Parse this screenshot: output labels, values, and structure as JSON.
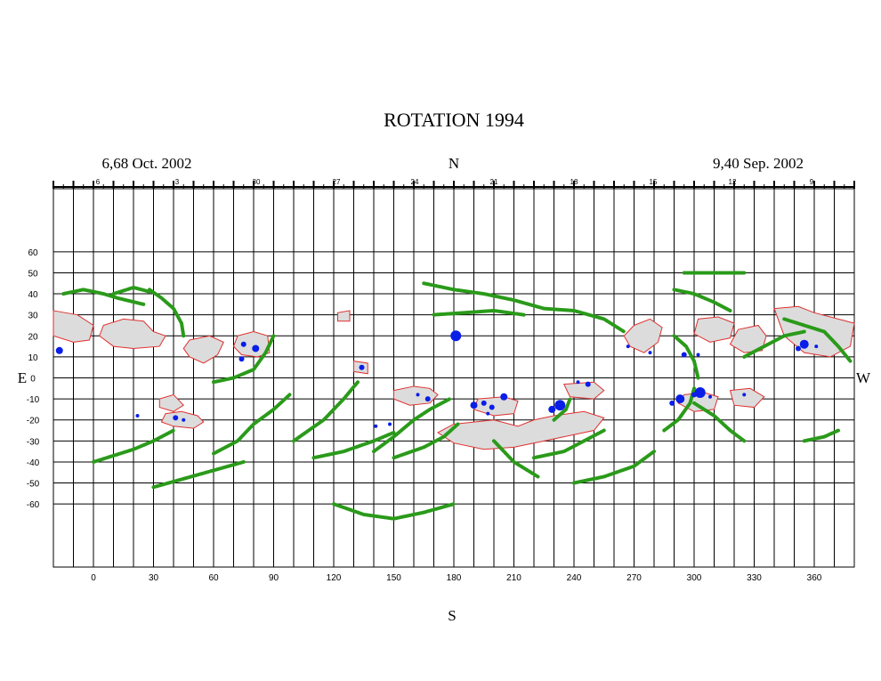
{
  "title": "ROTATION 1994",
  "date_left": "6,68 Oct. 2002",
  "date_right": "9,40 Sep. 2002",
  "north": "N",
  "south": "S",
  "east": "E",
  "west": "W",
  "top_day_labels": [
    "6",
    "3",
    "30",
    "27",
    "24",
    "21",
    "18",
    "15",
    "12",
    "9"
  ],
  "chart_data": {
    "type": "synoptic-map",
    "x_ticks": [
      0,
      30,
      60,
      90,
      120,
      150,
      180,
      210,
      240,
      270,
      300,
      330,
      360
    ],
    "y_ticks": [
      60,
      50,
      40,
      30,
      20,
      10,
      0,
      -10,
      -20,
      -30,
      -40,
      -50,
      -60
    ],
    "xlim": [
      -20,
      380
    ],
    "ylim": [
      -90,
      90
    ],
    "grid": true,
    "colors": {
      "filament": "#2a9a1a",
      "region_fill": "#dcdcdc",
      "region_edge": "#e03030",
      "sunspot": "#0a1ee8",
      "grid": "#000000"
    },
    "regions": [
      [
        [
          -20,
          32
        ],
        [
          -8,
          30
        ],
        [
          0,
          25
        ],
        [
          -2,
          18
        ],
        [
          -10,
          17
        ],
        [
          -20,
          20
        ]
      ],
      [
        [
          5,
          25
        ],
        [
          15,
          28
        ],
        [
          25,
          27
        ],
        [
          30,
          22
        ],
        [
          36,
          20
        ],
        [
          33,
          15
        ],
        [
          20,
          14
        ],
        [
          10,
          15
        ],
        [
          3,
          20
        ]
      ],
      [
        [
          48,
          18
        ],
        [
          58,
          20
        ],
        [
          65,
          17
        ],
        [
          62,
          11
        ],
        [
          55,
          7
        ],
        [
          48,
          10
        ],
        [
          45,
          14
        ]
      ],
      [
        [
          72,
          20
        ],
        [
          80,
          22
        ],
        [
          87,
          20
        ],
        [
          88,
          12
        ],
        [
          82,
          10
        ],
        [
          74,
          11
        ],
        [
          70,
          15
        ]
      ],
      [
        [
          33,
          -10
        ],
        [
          40,
          -8
        ],
        [
          45,
          -13
        ],
        [
          40,
          -16
        ],
        [
          33,
          -14
        ]
      ],
      [
        [
          36,
          -17
        ],
        [
          44,
          -16
        ],
        [
          52,
          -18
        ],
        [
          55,
          -21
        ],
        [
          50,
          -24
        ],
        [
          40,
          -23
        ],
        [
          34,
          -21
        ]
      ],
      [
        [
          130,
          8
        ],
        [
          137,
          7
        ],
        [
          137,
          2
        ],
        [
          130,
          3
        ]
      ],
      [
        [
          122,
          31
        ],
        [
          128,
          32
        ],
        [
          128,
          27
        ],
        [
          122,
          27
        ]
      ],
      [
        [
          150,
          -6
        ],
        [
          160,
          -4
        ],
        [
          168,
          -5
        ],
        [
          172,
          -8
        ],
        [
          168,
          -12
        ],
        [
          158,
          -13
        ],
        [
          150,
          -10
        ]
      ],
      [
        [
          180,
          -22
        ],
        [
          200,
          -20
        ],
        [
          212,
          -23
        ],
        [
          220,
          -20
        ],
        [
          230,
          -18
        ],
        [
          245,
          -16
        ],
        [
          255,
          -19
        ],
        [
          250,
          -25
        ],
        [
          235,
          -28
        ],
        [
          225,
          -30
        ],
        [
          210,
          -33
        ],
        [
          195,
          -34
        ],
        [
          180,
          -31
        ],
        [
          172,
          -26
        ]
      ],
      [
        [
          192,
          -10
        ],
        [
          205,
          -9
        ],
        [
          212,
          -11
        ],
        [
          210,
          -17
        ],
        [
          200,
          -18
        ],
        [
          190,
          -15
        ]
      ],
      [
        [
          235,
          -3
        ],
        [
          250,
          -2
        ],
        [
          255,
          -6
        ],
        [
          250,
          -10
        ],
        [
          238,
          -9
        ]
      ],
      [
        [
          270,
          25
        ],
        [
          278,
          28
        ],
        [
          284,
          24
        ],
        [
          282,
          17
        ],
        [
          275,
          12
        ],
        [
          268,
          15
        ],
        [
          265,
          20
        ]
      ],
      [
        [
          302,
          28
        ],
        [
          312,
          29
        ],
        [
          320,
          26
        ],
        [
          318,
          19
        ],
        [
          308,
          17
        ],
        [
          300,
          21
        ]
      ],
      [
        [
          322,
          23
        ],
        [
          332,
          25
        ],
        [
          336,
          20
        ],
        [
          334,
          13
        ],
        [
          325,
          12
        ],
        [
          318,
          16
        ]
      ],
      [
        [
          340,
          33
        ],
        [
          352,
          34
        ],
        [
          360,
          31
        ],
        [
          372,
          28
        ],
        [
          380,
          26
        ],
        [
          378,
          15
        ],
        [
          368,
          10
        ],
        [
          355,
          12
        ],
        [
          345,
          20
        ]
      ],
      [
        [
          295,
          -8
        ],
        [
          305,
          -7
        ],
        [
          312,
          -9
        ],
        [
          310,
          -15
        ],
        [
          300,
          -16
        ],
        [
          292,
          -12
        ]
      ],
      [
        [
          318,
          -6
        ],
        [
          328,
          -5
        ],
        [
          335,
          -9
        ],
        [
          330,
          -14
        ],
        [
          320,
          -13
        ]
      ]
    ],
    "filaments": [
      [
        [
          -15,
          40
        ],
        [
          -5,
          42
        ],
        [
          5,
          40
        ],
        [
          12,
          38
        ],
        [
          25,
          35
        ]
      ],
      [
        [
          10,
          40
        ],
        [
          20,
          43
        ],
        [
          28,
          41
        ]
      ],
      [
        [
          28,
          42
        ],
        [
          34,
          38
        ],
        [
          40,
          33
        ],
        [
          44,
          26
        ],
        [
          45,
          20
        ]
      ],
      [
        [
          0,
          -40
        ],
        [
          10,
          -37
        ],
        [
          20,
          -34
        ],
        [
          30,
          -30
        ],
        [
          40,
          -25
        ]
      ],
      [
        [
          30,
          -52
        ],
        [
          45,
          -48
        ],
        [
          60,
          -44
        ],
        [
          75,
          -40
        ]
      ],
      [
        [
          60,
          -36
        ],
        [
          72,
          -30
        ],
        [
          80,
          -22
        ],
        [
          90,
          -15
        ],
        [
          98,
          -8
        ]
      ],
      [
        [
          60,
          -2
        ],
        [
          70,
          0
        ],
        [
          80,
          4
        ],
        [
          86,
          12
        ],
        [
          90,
          20
        ]
      ],
      [
        [
          140,
          -35
        ],
        [
          150,
          -28
        ],
        [
          160,
          -20
        ],
        [
          168,
          -15
        ],
        [
          178,
          -10
        ]
      ],
      [
        [
          110,
          -38
        ],
        [
          125,
          -35
        ],
        [
          140,
          -30
        ],
        [
          150,
          -26
        ]
      ],
      [
        [
          150,
          -38
        ],
        [
          165,
          -33
        ],
        [
          175,
          -28
        ],
        [
          182,
          -22
        ]
      ],
      [
        [
          165,
          45
        ],
        [
          180,
          42
        ],
        [
          195,
          40
        ],
        [
          210,
          37
        ],
        [
          225,
          33
        ],
        [
          240,
          32
        ],
        [
          255,
          28
        ],
        [
          265,
          22
        ]
      ],
      [
        [
          170,
          30
        ],
        [
          185,
          31
        ],
        [
          200,
          32
        ],
        [
          215,
          30
        ]
      ],
      [
        [
          100,
          -30
        ],
        [
          115,
          -20
        ],
        [
          125,
          -10
        ],
        [
          132,
          -2
        ]
      ],
      [
        [
          120,
          -60
        ],
        [
          135,
          -65
        ],
        [
          150,
          -67
        ],
        [
          165,
          -64
        ],
        [
          180,
          -60
        ]
      ],
      [
        [
          220,
          -38
        ],
        [
          235,
          -35
        ],
        [
          245,
          -30
        ],
        [
          255,
          -25
        ]
      ],
      [
        [
          240,
          -50
        ],
        [
          255,
          -47
        ],
        [
          270,
          -42
        ],
        [
          280,
          -35
        ]
      ],
      [
        [
          285,
          -25
        ],
        [
          292,
          -20
        ],
        [
          298,
          -12
        ],
        [
          300,
          -5
        ]
      ],
      [
        [
          300,
          -12
        ],
        [
          310,
          -18
        ],
        [
          318,
          -25
        ],
        [
          325,
          -30
        ]
      ],
      [
        [
          325,
          10
        ],
        [
          335,
          15
        ],
        [
          345,
          20
        ],
        [
          355,
          22
        ]
      ],
      [
        [
          345,
          28
        ],
        [
          355,
          25
        ],
        [
          365,
          22
        ],
        [
          372,
          15
        ],
        [
          378,
          8
        ]
      ],
      [
        [
          290,
          42
        ],
        [
          300,
          40
        ],
        [
          310,
          36
        ],
        [
          318,
          32
        ]
      ],
      [
        [
          295,
          50
        ],
        [
          310,
          50
        ],
        [
          325,
          50
        ]
      ],
      [
        [
          355,
          -30
        ],
        [
          365,
          -28
        ],
        [
          372,
          -25
        ]
      ],
      [
        [
          290,
          20
        ],
        [
          296,
          15
        ],
        [
          300,
          8
        ],
        [
          302,
          0
        ]
      ],
      [
        [
          230,
          -20
        ],
        [
          236,
          -15
        ],
        [
          238,
          -10
        ]
      ],
      [
        [
          200,
          -30
        ],
        [
          210,
          -40
        ],
        [
          222,
          -47
        ]
      ]
    ],
    "sunspots": [
      [
        -17,
        13,
        4
      ],
      [
        81,
        14,
        4
      ],
      [
        75,
        16,
        3
      ],
      [
        74,
        9,
        3
      ],
      [
        41,
        -19,
        3
      ],
      [
        45,
        -20,
        2
      ],
      [
        22,
        -18,
        2
      ],
      [
        134,
        5,
        3
      ],
      [
        141,
        -23,
        2
      ],
      [
        148,
        -22,
        2
      ],
      [
        181,
        20,
        6
      ],
      [
        167,
        -10,
        3
      ],
      [
        162,
        -8,
        2
      ],
      [
        195,
        -12,
        3
      ],
      [
        199,
        -14,
        3
      ],
      [
        190,
        -13,
        4
      ],
      [
        205,
        -9,
        4
      ],
      [
        197,
        -17,
        2
      ],
      [
        233,
        -13,
        6
      ],
      [
        229,
        -15,
        4
      ],
      [
        242,
        -2,
        2
      ],
      [
        247,
        -3,
        3
      ],
      [
        267,
        15,
        2
      ],
      [
        278,
        12,
        2
      ],
      [
        293,
        -10,
        5
      ],
      [
        289,
        -12,
        3
      ],
      [
        303,
        -7,
        6
      ],
      [
        300,
        -8,
        3
      ],
      [
        308,
        -9,
        2
      ],
      [
        355,
        16,
        5
      ],
      [
        352,
        14,
        3
      ],
      [
        361,
        15,
        2
      ],
      [
        295,
        11,
        3
      ],
      [
        325,
        -8,
        2
      ],
      [
        302,
        11,
        2
      ]
    ]
  }
}
